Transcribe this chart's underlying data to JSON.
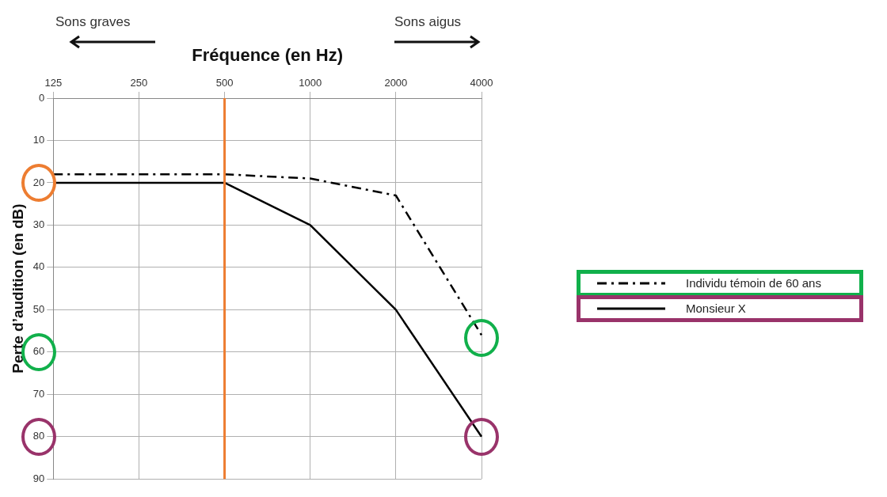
{
  "chart_data": {
    "type": "line",
    "xlabel": "Fréquence (en Hz)",
    "ylabel": "Perte d’audition (en dB)",
    "categories": [
      "125",
      "250",
      "500",
      "1000",
      "2000",
      "4000"
    ],
    "series": [
      {
        "name": "Individu témoin de 60 ans",
        "color": "#000000",
        "line_style": "dashdot",
        "values": [
          18,
          18,
          18,
          19,
          23,
          56
        ]
      },
      {
        "name": "Monsieur X",
        "color": "#000000",
        "line_style": "solid",
        "values": [
          20,
          20,
          20,
          30,
          50,
          80
        ]
      }
    ],
    "ylim": [
      90,
      0
    ],
    "yticks": [
      0,
      10,
      20,
      30,
      40,
      50,
      60,
      70,
      80,
      90
    ],
    "ref_lines": [
      {
        "axis": "x",
        "value": "500",
        "color": "#ed7d31"
      }
    ],
    "annotations": [
      "Sons graves",
      "Sons aigus"
    ],
    "grid": true,
    "legend": "right",
    "marker": "none"
  }
}
